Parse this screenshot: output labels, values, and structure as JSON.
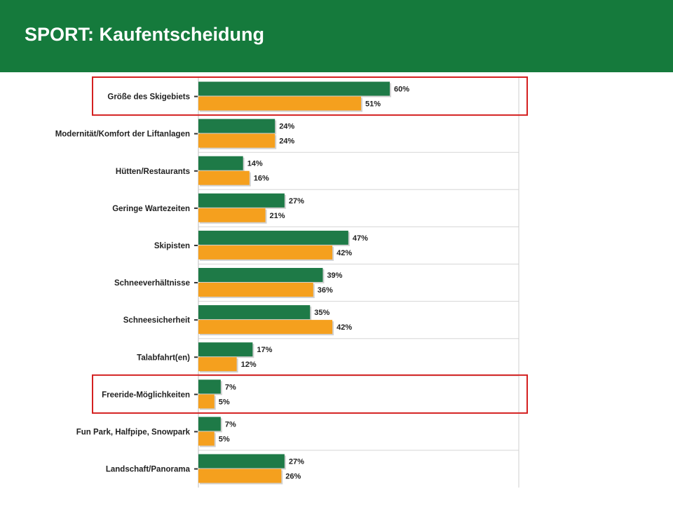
{
  "header": {
    "title": "SPORT: Kaufentscheidung",
    "background_color": "#157a3c"
  },
  "chart_data": {
    "type": "bar",
    "orientation": "horizontal",
    "title": "",
    "xlabel": "",
    "ylabel": "",
    "xlim": [
      0,
      100
    ],
    "grid": true,
    "legend": "none",
    "value_format": "percent",
    "categories": [
      "Größe des Skigebiets",
      "Modernität/Komfort der Liftanlagen",
      "Hütten/Restaurants",
      "Geringe Wartezeiten",
      "Skipisten",
      "Schneeverhältnisse",
      "Schneesicherheit",
      "Talabfahrt(en)",
      "Freeride-Möglichkeiten",
      "Fun Park, Halfpipe, Snowpark",
      "Landschaft/Panorama"
    ],
    "series": [
      {
        "color": "#1e7a47",
        "values": [
          60,
          24,
          14,
          27,
          47,
          39,
          35,
          17,
          7,
          7,
          27
        ]
      },
      {
        "color": "#f5a01e",
        "values": [
          51,
          24,
          16,
          21,
          42,
          36,
          42,
          12,
          5,
          5,
          26
        ]
      }
    ],
    "highlighted_categories": [
      "Größe des Skigebiets",
      "Freeride-Möglichkeiten"
    ],
    "highlight_color": "#d42020"
  }
}
